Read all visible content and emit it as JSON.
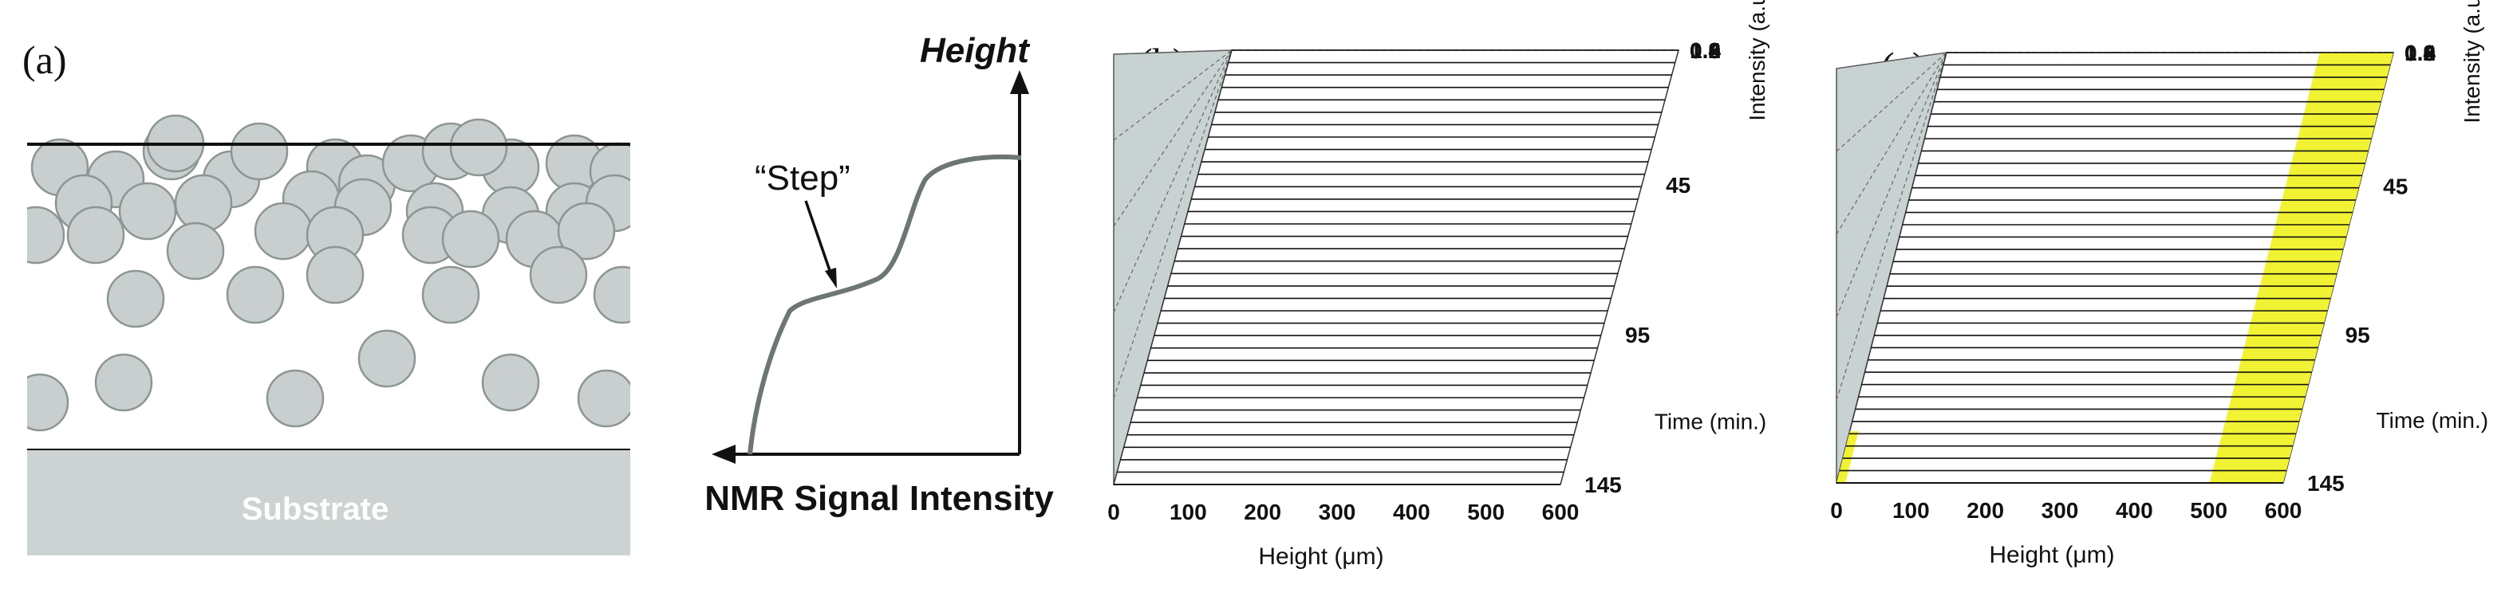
{
  "panel_a": {
    "label": "(a)",
    "substrate_label": "Substrate",
    "schematic_title": "Height",
    "schematic_xlabel": "NMR Signal Intensity",
    "step_label": "“Step”",
    "colors": {
      "particle": "#c9cece",
      "particle_edge": "#8e9595",
      "substrate": "#cdd3d3",
      "curve": "#6e7575"
    }
  },
  "chart_data": [
    {
      "type": "line",
      "panel": "(b)",
      "title": "",
      "xlabel": "Height (μm)",
      "ylabel": "Intensity (a.u.)",
      "zlabel": "Time (min.)",
      "x_ticks": [
        "0",
        "100",
        "200",
        "300",
        "400",
        "500",
        "600"
      ],
      "y_ticks": [
        "0.0",
        "0.2",
        "0.4",
        "0.6",
        "0.8",
        "1.0"
      ],
      "time_ticks": [
        "45",
        "95",
        "145"
      ],
      "xlim": [
        0,
        600
      ],
      "ylim": [
        0,
        1.0
      ],
      "time_range": [
        0,
        145
      ],
      "series_count": 36,
      "profile_shape": "decaying plateau between 60 and 480 μm; early profiles ~1.0 declining toward ~0.05 at late times",
      "annotation": "arrow marking step in profiles",
      "colors": {
        "wall": "#c9d2d2",
        "back": "#6d7474",
        "floor": "#ffffff",
        "line": "#111111"
      }
    },
    {
      "type": "line",
      "panel": "(c)",
      "title": "",
      "xlabel": "Height (μm)",
      "ylabel": "Intensity (a.u.)",
      "zlabel": "Time (min.)",
      "x_ticks": [
        "0",
        "100",
        "200",
        "300",
        "400",
        "500",
        "600"
      ],
      "y_ticks": [
        "0.0",
        "0.2",
        "0.4",
        "0.6",
        "0.8",
        "1.0"
      ],
      "time_ticks": [
        "45",
        "95",
        "145"
      ],
      "xlim": [
        0,
        600
      ],
      "ylim": [
        0,
        1.0
      ],
      "time_range": [
        0,
        145
      ],
      "series_count": 36,
      "profile_shape": "plateau between 60 and 500 μm decaying to a residual plateau ~0.3 between 80 and 300 μm",
      "colors": {
        "wall": "#c9d2d2",
        "back": "#6d7474",
        "floor": "#ffffff",
        "floor_side": "#f2f234",
        "line": "#111111"
      }
    }
  ]
}
